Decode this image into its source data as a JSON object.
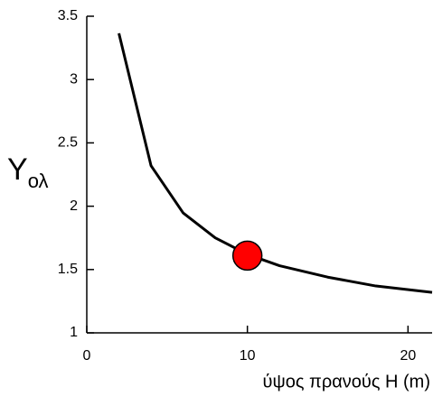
{
  "chart_data": {
    "type": "line",
    "ylabel": "Y",
    "ylabel_subscript": "ολ",
    "xlabel": "ύψος πρανούς H (m)",
    "x": [
      2,
      4,
      6,
      8,
      10,
      12,
      15,
      18,
      21.5
    ],
    "values": [
      3.365,
      2.32,
      1.947,
      1.75,
      1.62,
      1.53,
      1.44,
      1.37,
      1.32
    ],
    "color": "#000000",
    "marker": {
      "x": 10,
      "y": 1.61,
      "color": "#ff0000"
    },
    "xlim": [
      0,
      21.5
    ],
    "xticks": [
      0,
      10,
      20
    ],
    "ylim": [
      1,
      3.5
    ],
    "yticks": [
      1,
      1.5,
      2,
      2.5,
      3,
      3.5
    ],
    "grid": false
  }
}
